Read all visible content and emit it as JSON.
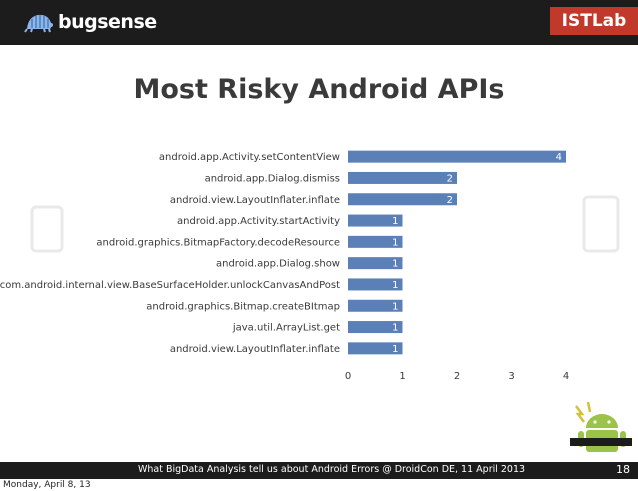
{
  "header": {
    "logo_text": "bugsense",
    "badge": "ISTLab"
  },
  "slide": {
    "title": "Most Risky Android APIs",
    "footer_text": "What BigData Analysis tell us about Android Errors @ DroidCon DE, 11 April 2013",
    "page_number": "18"
  },
  "os_date": "Monday, April 8, 13",
  "colors": {
    "bar": "#5b80b8",
    "topbar": "#1c1c1c",
    "badge": "#c0392b"
  },
  "chart_data": {
    "type": "bar",
    "orientation": "horizontal",
    "categories": [
      "android.app.Activity.setContentView",
      "android.app.Dialog.dismiss",
      "android.view.LayoutInflater.inflate",
      "android.app.Activity.startActivity",
      "android.graphics.BitmapFactory.decodeResource",
      "android.app.Dialog.show",
      "com.android.internal.view.BaseSurfaceHolder.unlockCanvasAndPost",
      "android.graphics.Bitmap.createBItmap",
      "java.util.ArrayList.get",
      "android.view.LayoutInflater.inflate"
    ],
    "values": [
      4,
      2,
      2,
      1,
      1,
      1,
      1,
      1,
      1,
      1
    ],
    "data_labels": [
      "4",
      "2",
      "2",
      "1",
      "1",
      "1",
      "1",
      "1",
      "1",
      "1"
    ],
    "xlim": [
      0,
      4
    ],
    "xticks": [
      "0",
      "1",
      "2",
      "3",
      "4"
    ],
    "grid": false,
    "legend": "none"
  }
}
